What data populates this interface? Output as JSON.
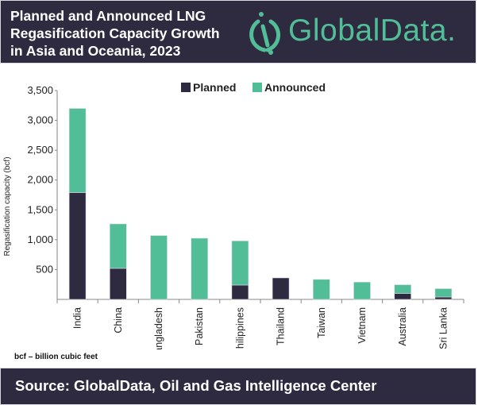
{
  "header": {
    "title_lines": [
      "Planned and Announced LNG",
      "Regasification Capacity Growth",
      "in Asia and Oceania, 2023"
    ],
    "logo_text": "GlobalData."
  },
  "note": "bcf – billion cubic feet",
  "footer": {
    "source": "Source: GlobalData, Oil and Gas Intelligence Center"
  },
  "colors": {
    "planned": "#2e2a3f",
    "announced": "#51be97",
    "header_bg": "#2e2a3f"
  },
  "chart_data": {
    "type": "bar",
    "stacked": true,
    "title": "Planned and Announced LNG Regasification Capacity Growth in Asia and Oceania, 2023",
    "xlabel": "",
    "ylabel": "Regasification capacity (bcf)",
    "ylim": [
      0,
      3500
    ],
    "yticks": [
      500,
      1000,
      1500,
      2000,
      2500,
      3000,
      3500
    ],
    "ytick_labels": [
      "500",
      "1,000",
      "1,500",
      "2,000",
      "2,500",
      "3,000",
      "3,500"
    ],
    "legend_position": "top-center",
    "categories": [
      "India",
      "China",
      "Bangladesh",
      "Pakistan",
      "Philippines",
      "Thailand",
      "Taiwan",
      "Vietnam",
      "Australia",
      "Sri Lanka"
    ],
    "series": [
      {
        "name": "Planned",
        "values": [
          1790,
          520,
          0,
          0,
          240,
          360,
          0,
          0,
          100,
          40
        ]
      },
      {
        "name": "Announced",
        "values": [
          1410,
          745,
          1070,
          1025,
          740,
          0,
          335,
          290,
          145,
          140
        ]
      }
    ]
  }
}
